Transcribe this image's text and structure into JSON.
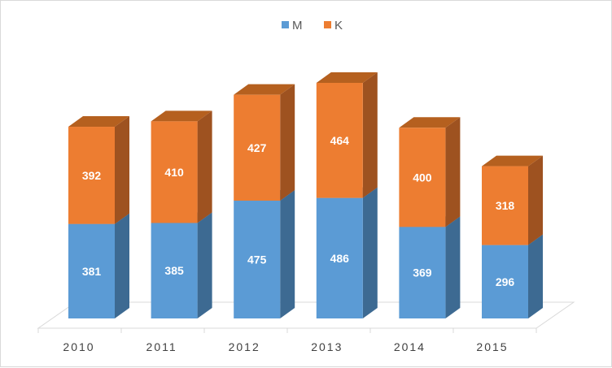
{
  "chart_data": {
    "type": "bar",
    "stacked": true,
    "style": "3d-column",
    "categories": [
      "2010",
      "2011",
      "2012",
      "2013",
      "2014",
      "2015"
    ],
    "series": [
      {
        "name": "M",
        "values": [
          381,
          385,
          475,
          486,
          369,
          296
        ],
        "color": "#5b9bd5",
        "side_color": "#3d6a92",
        "top_color": "#4a80b0"
      },
      {
        "name": "K",
        "values": [
          392,
          410,
          427,
          464,
          400,
          318
        ],
        "color": "#ed7d31",
        "side_color": "#9e5220",
        "top_color": "#b5601f"
      }
    ],
    "legend_position": "top",
    "grid": false,
    "title": "",
    "xlabel": "",
    "ylabel": ""
  }
}
